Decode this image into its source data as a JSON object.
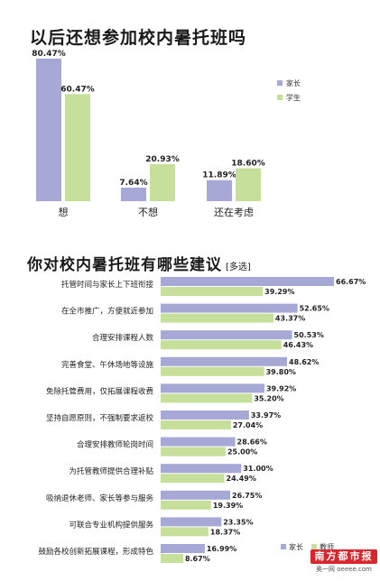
{
  "chart_data": [
    {
      "type": "bar",
      "title": "以后还想参加校内暑托班吗",
      "categories": [
        "想",
        "不想",
        "还在考虑"
      ],
      "series": [
        {
          "name": "家长",
          "values": [
            80.47,
            7.64,
            11.89
          ],
          "labels": [
            "80.47%",
            "7.64%",
            "11.89%"
          ]
        },
        {
          "name": "学生",
          "values": [
            60.47,
            20.93,
            18.6
          ],
          "labels": [
            "60.47%",
            "20.93%",
            "18.60%"
          ]
        }
      ],
      "ylim": [
        0,
        80.47
      ],
      "grid": false,
      "legend": "right"
    },
    {
      "type": "bar",
      "orientation": "horizontal",
      "title": "你对校内暑托班有哪些建议",
      "title_note": "[多选]",
      "categories": [
        "托管时间与家长上下班衔接",
        "在全市推广，方便就近参加",
        "合理安排课程人数",
        "完善食堂、午休场地等设施",
        "免除托管费用，仅拓展课程收费",
        "坚持自愿原则，不强制要求返校",
        "合理安排教师轮岗时间",
        "为托管教师提供合理补贴",
        "吸纳退休老师、家长等参与服务",
        "可联合专业机构提供服务",
        "鼓励各校创新拓展课程，形成特色"
      ],
      "series": [
        {
          "name": "家长",
          "values": [
            66.67,
            52.65,
            50.53,
            48.62,
            39.92,
            33.97,
            28.66,
            31.0,
            26.75,
            23.35,
            16.99
          ],
          "labels": [
            "66.67%",
            "52.65%",
            "50.53%",
            "48.62%",
            "39.92%",
            "33.97%",
            "28.66%",
            "31.00%",
            "26.75%",
            "23.35%",
            "16.99%"
          ]
        },
        {
          "name": "教师",
          "values": [
            39.29,
            43.37,
            46.43,
            39.8,
            35.2,
            27.04,
            25.0,
            24.49,
            19.39,
            18.37,
            8.67
          ],
          "labels": [
            "39.29%",
            "43.37%",
            "46.43%",
            "39.80%",
            "35.20%",
            "27.04%",
            "25.00%",
            "24.49%",
            "19.39%",
            "18.37%",
            "8.67%"
          ]
        }
      ],
      "xlim": [
        0,
        66.67
      ],
      "grid": false,
      "legend": "bottom-right"
    }
  ],
  "colors": {
    "parent": "#a6a8d6",
    "student": "#c6df9a",
    "teacher": "#c6df9a"
  },
  "logo": {
    "brand": "南方都市报",
    "sub": "奥一网 oeeee.com"
  }
}
